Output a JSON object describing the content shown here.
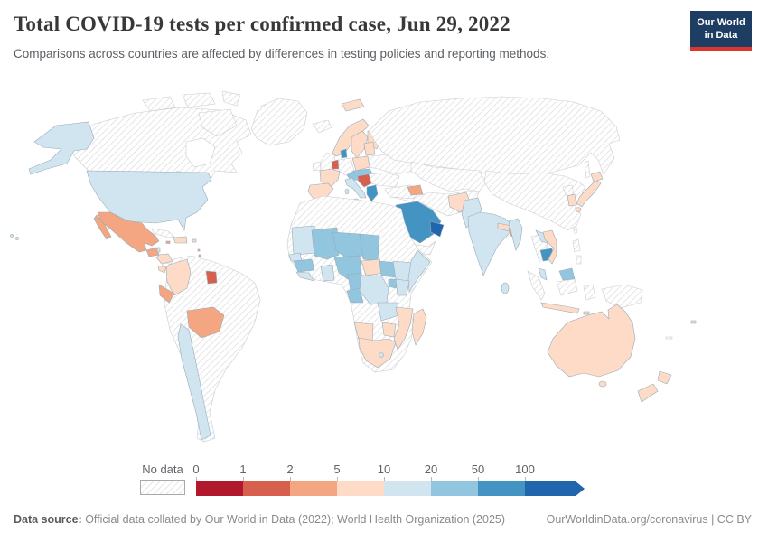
{
  "header": {
    "title": "Total COVID-19 tests per confirmed case, Jun 29, 2022",
    "subtitle": "Comparisons across countries are affected by differences in testing policies and reporting methods.",
    "logo": {
      "line1": "Our World",
      "line2": "in Data"
    }
  },
  "legend": {
    "no_data_label": "No data",
    "ticks": [
      "0",
      "1",
      "2",
      "5",
      "10",
      "20",
      "50",
      "100"
    ]
  },
  "footer": {
    "source_label": "Data source:",
    "source_text": " Official data collated by Our World in Data (2022); World Health Organization (2025)",
    "link_text": "OurWorldinData.org/coronavirus | CC BY"
  },
  "chart_data": {
    "type": "heatmap",
    "subtype": "world-choropleth",
    "title": "Total COVID-19 tests per confirmed case, Jun 29, 2022",
    "unit": "tests per confirmed case",
    "unit_bins": [
      "0-1",
      "1-2",
      "2-5",
      "5-10",
      "10-20",
      "20-50",
      "50-100",
      "100+"
    ],
    "bin_colors": {
      "0-1": "#b2182b",
      "1-2": "#d6604d",
      "2-5": "#f4a582",
      "5-10": "#fddbc7",
      "10-20": "#d1e5f0",
      "20-50": "#92c5de",
      "50-100": "#4393c3",
      "100+": "#2166ac"
    },
    "no_data_style": "diagonal-hatch",
    "no_data_regions": [
      "Canada",
      "Greenland",
      "Russia",
      "China",
      "Mongolia",
      "Kazakhstan",
      "Brazil",
      "Argentina",
      "Peru",
      "Venezuela",
      "Guyana",
      "Cuba",
      "United Kingdom",
      "Ireland",
      "Iceland",
      "Germany",
      "Ukraine",
      "Belarus",
      "Romania",
      "Bulgaria",
      "Turkey",
      "Iran",
      "Iraq",
      "Yemen",
      "Algeria",
      "Libya",
      "Egypt",
      "Sudan",
      "Tanzania",
      "Angola",
      "Botswana",
      "Thailand",
      "North Korea",
      "Taiwan",
      "Philippines",
      "Indonesia (Kalimantan, Sumatra, Sulawesi)",
      "Papua New Guinea",
      "Nicaragua",
      "Jamaica"
    ],
    "values": {
      "united-states": "10-20",
      "belize": "10-20",
      "panama": "10-20",
      "chile": "10-20",
      "italy-switzerland": "10-20",
      "pakistan": "10-20",
      "india": "10-20",
      "sri-lanka": "10-20",
      "myanmar": "10-20",
      "laos": "10-20",
      "malaysia": "10-20",
      "mauritania": "10-20",
      "senegal": "10-20",
      "sierra-leone-liberia": "10-20",
      "ghana": "10-20",
      "ethiopia": "10-20",
      "somalia": "10-20",
      "kenya": "10-20",
      "dr-congo": "10-20",
      "zambia": "10-20",
      "lesotho": "10-20",
      "mexico": "2-5",
      "guatemala": "2-5",
      "ecuador": "2-5",
      "bolivia": "2-5",
      "bangladesh": "2-5",
      "azerbaijan": "2-5",
      "jamaica-antilles": "2-5",
      "suriname": "1-2",
      "netherlands": "1-2",
      "croatia-serbia": "1-2",
      "dominican-republic": "5-10",
      "puerto-rico": "5-10",
      "colombia": "5-10",
      "honduras": "5-10",
      "costa-rica": "5-10",
      "norway": "5-10",
      "svalbard": "5-10",
      "sweden": "5-10",
      "finland": "5-10",
      "france": "5-10",
      "spain-portugal": "5-10",
      "poland": "5-10",
      "baltics": "5-10",
      "afghanistan": "5-10",
      "nepal": "5-10",
      "vietnam": "5-10",
      "south-korea": "5-10",
      "japan": "5-10",
      "indonesia-java": "5-10",
      "central-african-republic": "5-10",
      "namibia": "5-10",
      "zimbabwe": "5-10",
      "mozambique": "5-10",
      "south-africa": "5-10",
      "madagascar": "5-10",
      "australia": "5-10",
      "new-zealand": "5-10",
      "fiji": "5-10",
      "central-europe": "20-50",
      "malaysia-borneo": "20-50",
      "mali": "20-50",
      "guinea": "20-50",
      "niger": "20-50",
      "chad": "20-50",
      "nigeria": "20-50",
      "cameroon-gabon": "20-50",
      "south-sudan": "20-50",
      "uganda": "20-50",
      "denmark": "50-100",
      "greece": "50-100",
      "saudi-arabia": "50-100",
      "cambodia": "50-100",
      "uae-oman": "100+"
    }
  }
}
